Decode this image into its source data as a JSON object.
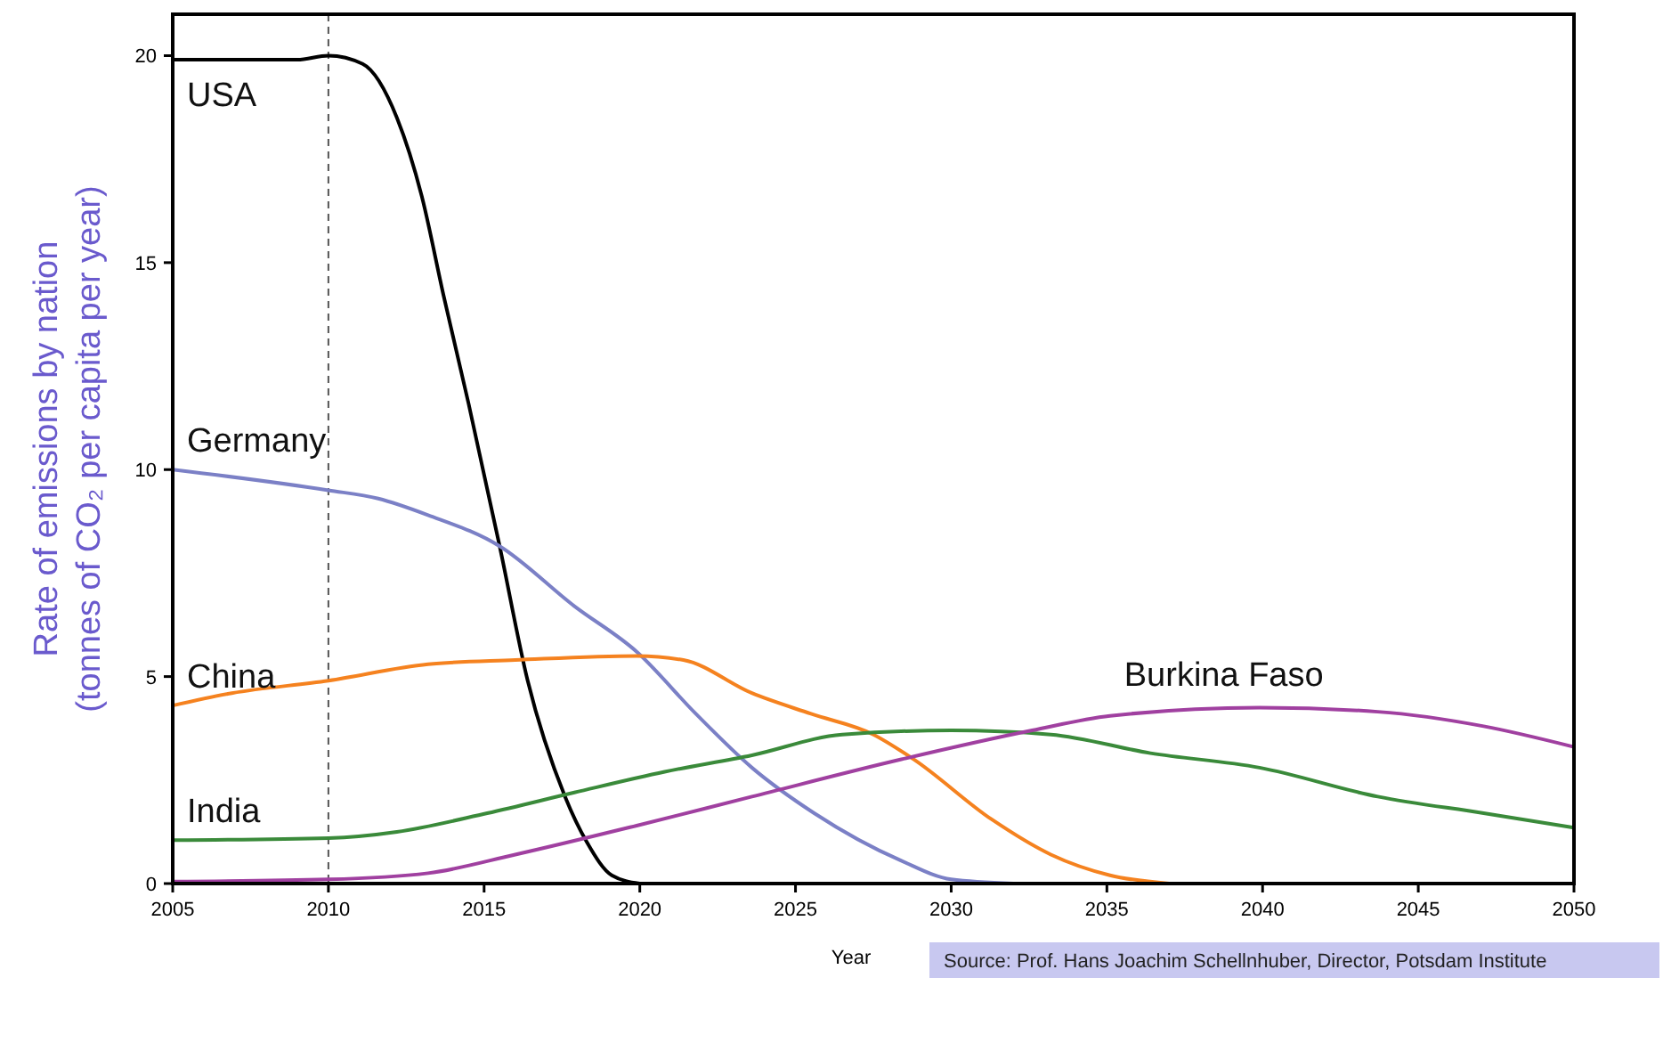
{
  "chart_data": {
    "type": "line",
    "xlabel": "Year",
    "ylabel": "Rate of emissions by nation\n(tonnes of CO₂ per capita per year)",
    "xlim": [
      2005,
      2050
    ],
    "ylim": [
      0,
      21
    ],
    "xticks": [
      2005,
      2010,
      2015,
      2020,
      2025,
      2030,
      2035,
      2040,
      2045,
      2050
    ],
    "yticks": [
      0,
      5,
      10,
      15,
      20
    ],
    "grid": false,
    "line_style": "solid",
    "marker": "none",
    "ref_lines": [
      {
        "axis": "x",
        "value": 2010,
        "color": "#555555",
        "line_style": "dashed"
      }
    ],
    "annotations": [
      "Source: Prof. Hans Joachim Schellnhuber, Director, Potsdam Institute"
    ],
    "series": [
      {
        "name": "USA",
        "color": "#000000",
        "x": [
          2005,
          2009,
          2010,
          2011.1,
          2012.2,
          2013,
          2013.7,
          2014.5,
          2015.5,
          2016.4,
          2017.6,
          2018.3,
          2019.1,
          2020
        ],
        "values": [
          19.9,
          19.9,
          20,
          19.8,
          18.5,
          16.6,
          14.2,
          11.6,
          8.15,
          4.9,
          2.1,
          1,
          0.2,
          0
        ]
      },
      {
        "name": "Germany",
        "color": "#7b80c6",
        "x": [
          2005,
          2010,
          2011.6,
          2013.2,
          2015.5,
          2017.9,
          2019.9,
          2021.8,
          2023.6,
          2025.6,
          2028.4,
          2030,
          2032
        ],
        "values": [
          10,
          9.5,
          9.3,
          8.9,
          8.15,
          6.7,
          5.6,
          4.1,
          2.8,
          1.7,
          0.55,
          0.1,
          0
        ]
      },
      {
        "name": "China",
        "color": "#f5821f",
        "x": [
          2005,
          2006.9,
          2010,
          2013.2,
          2016,
          2019.9,
          2021.4,
          2023.6,
          2025.5,
          2027.5,
          2028.8,
          2031.3,
          2033.2,
          2035.1,
          2037
        ],
        "values": [
          4.3,
          4.6,
          4.9,
          5.3,
          5.4,
          5.5,
          5.4,
          4.6,
          4.1,
          3.6,
          3,
          1.55,
          0.7,
          0.2,
          0
        ]
      },
      {
        "name": "India",
        "color": "#3a8a3a",
        "x": [
          2005,
          2010,
          2012.2,
          2015.1,
          2017.9,
          2020.8,
          2023.6,
          2026.5,
          2030,
          2033.2,
          2036.4,
          2039.9,
          2043.7,
          2047.1,
          2050
        ],
        "values": [
          1.05,
          1.1,
          1.25,
          1.7,
          2.2,
          2.7,
          3.1,
          3.6,
          3.7,
          3.6,
          3.15,
          2.8,
          2.1,
          1.7,
          1.35
        ]
      },
      {
        "name": "Burkina Faso",
        "color": "#a040a0",
        "x": [
          2005,
          2010,
          2013.2,
          2016,
          2019.9,
          2023.6,
          2028.4,
          2032.6,
          2035.1,
          2039.9,
          2043.7,
          2047.1,
          2050
        ],
        "values": [
          0.05,
          0.1,
          0.25,
          0.7,
          1.4,
          2.1,
          3,
          3.7,
          4.05,
          4.25,
          4.15,
          3.8,
          3.3
        ]
      }
    ]
  }
}
